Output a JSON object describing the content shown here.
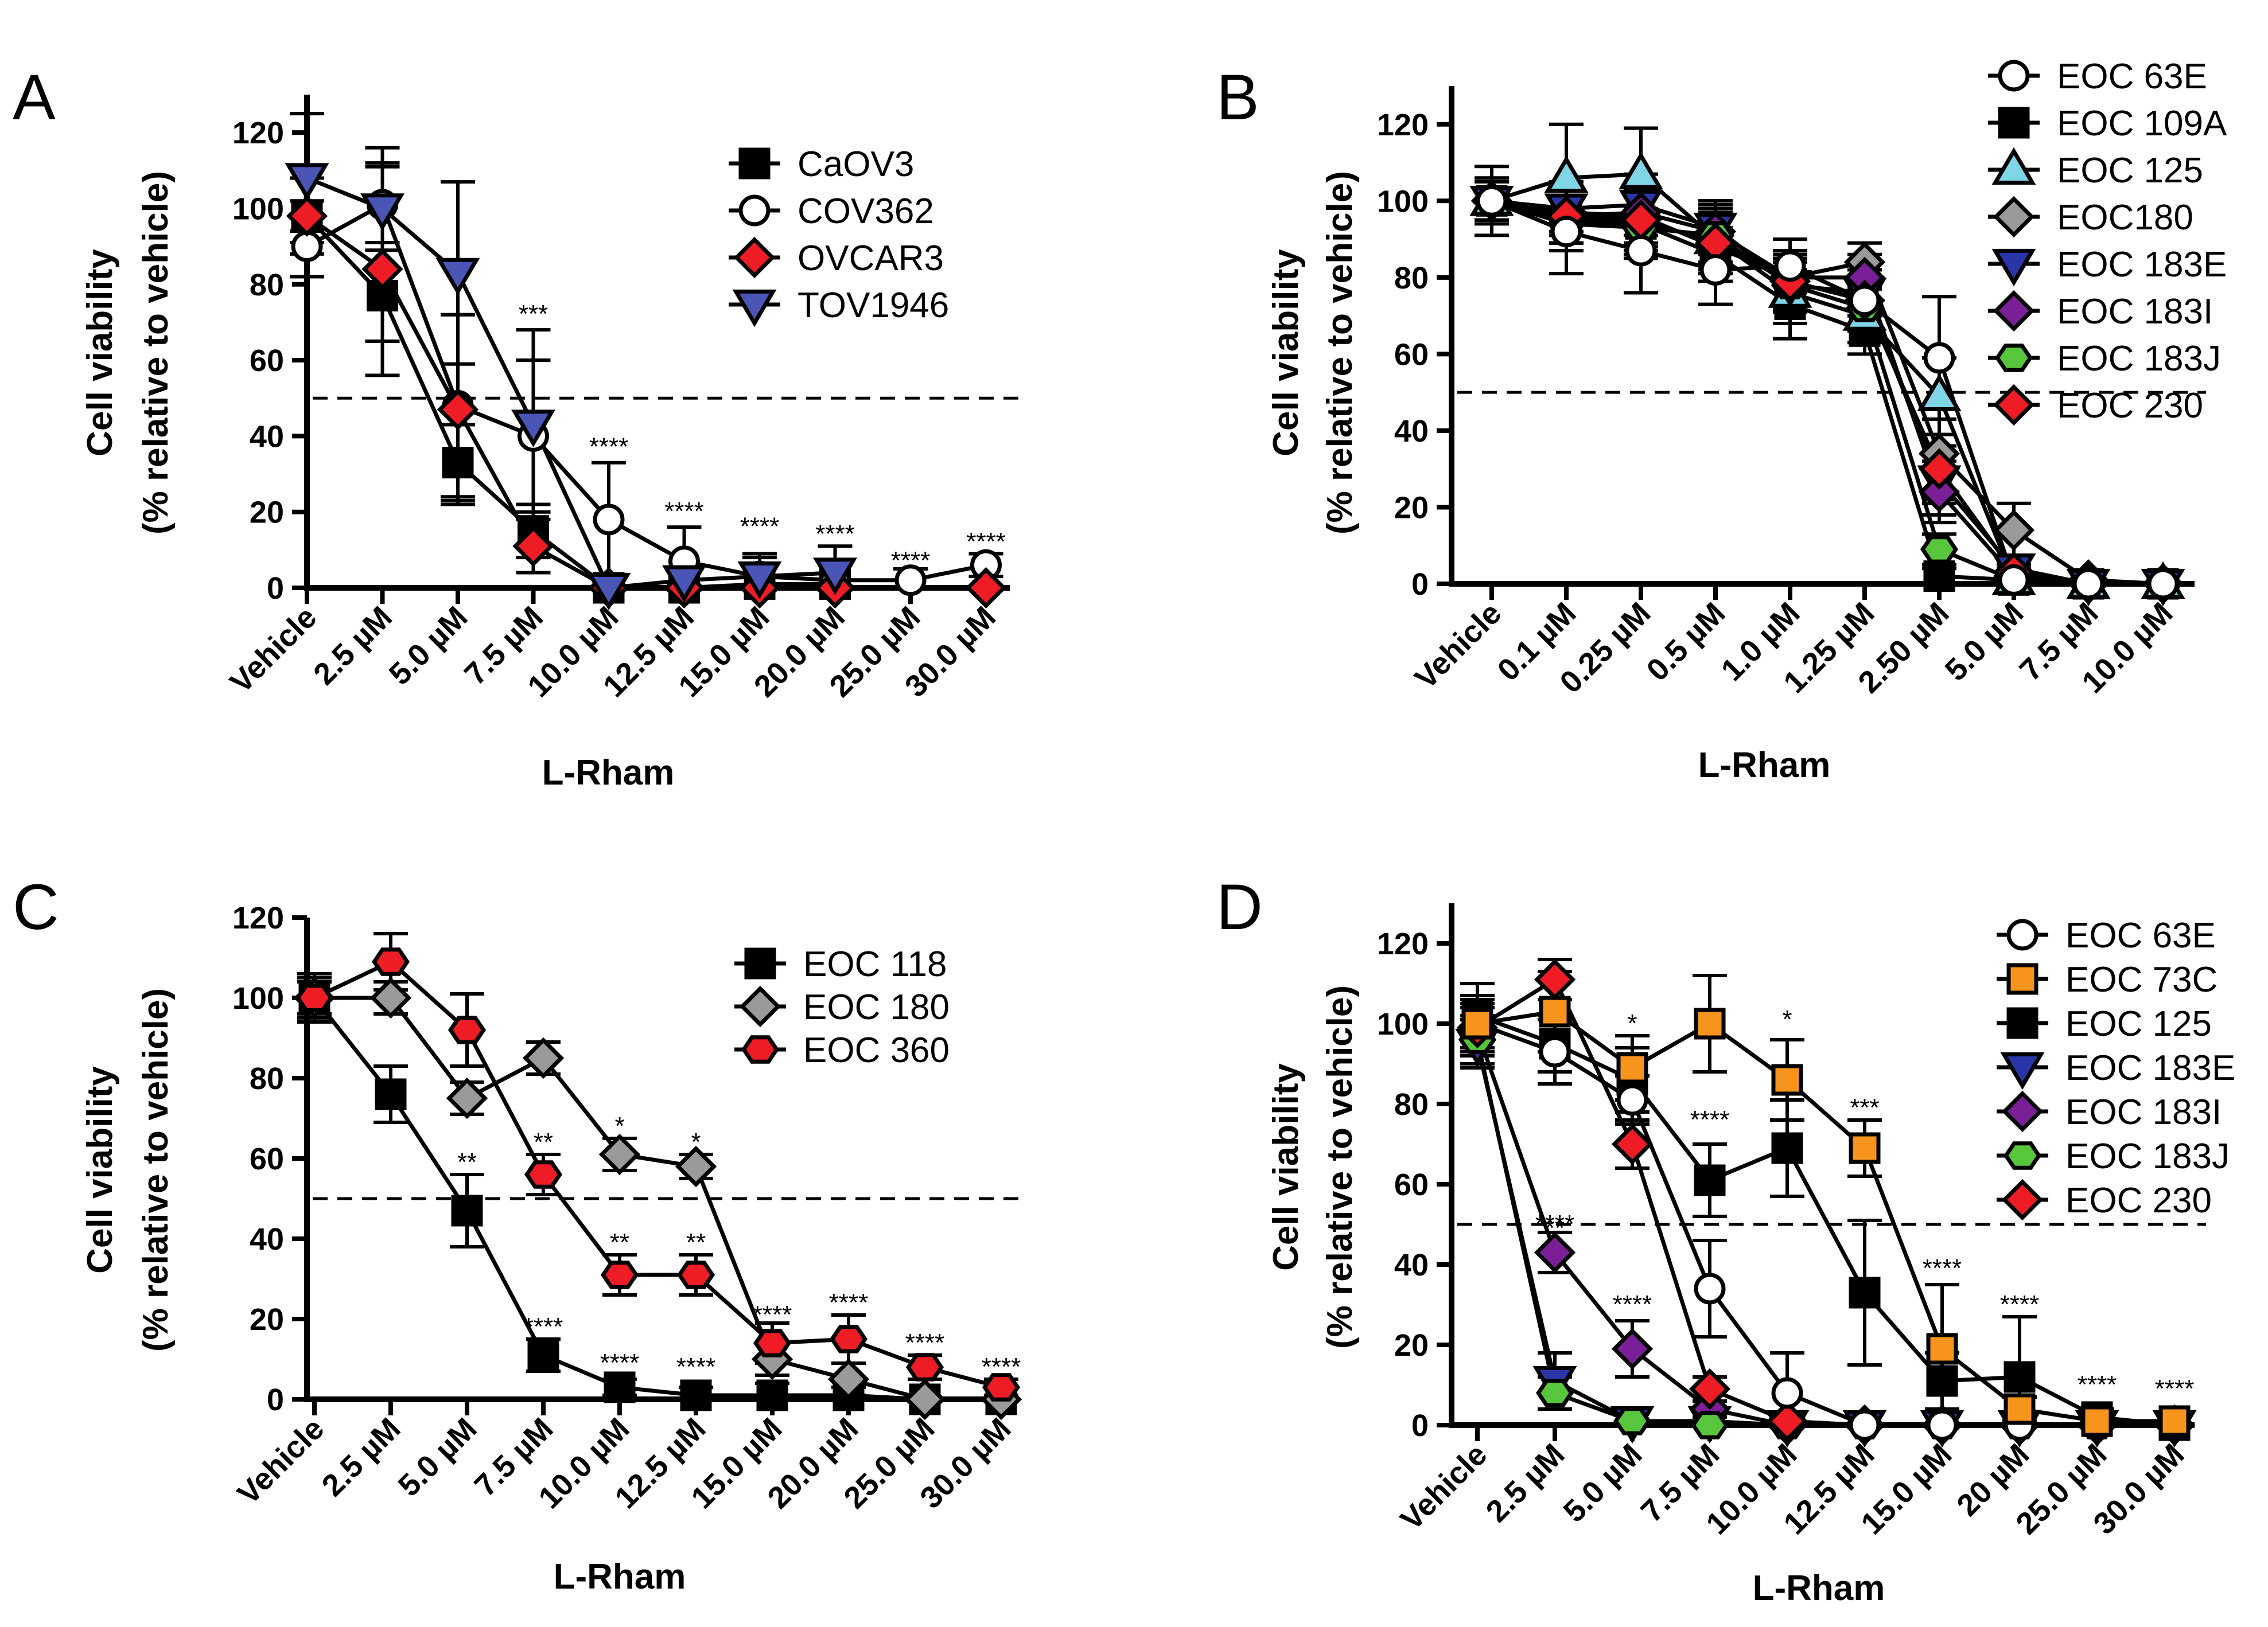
{
  "chart_data": [
    {
      "panel": "A",
      "type": "line",
      "xlabel": "L-Rham",
      "ylabel": "Cell viability",
      "ylabel2": "(% relative to vehicle)",
      "ylim": [
        0,
        130
      ],
      "yticks": [
        0,
        20,
        40,
        60,
        80,
        100,
        120
      ],
      "reference_line": 50,
      "legend_position": "top-right",
      "categories": [
        "Vehicle",
        "2.5 µM",
        "5.0 µM",
        "7.5 µM",
        "10.0 µM",
        "12.5 µM",
        "15.0 µM",
        "20.0 µM",
        "25.0 µM",
        "30.0 µM"
      ],
      "series": [
        {
          "name": "CaOV3",
          "marker": "square",
          "fill": "#000000",
          "values": [
            98,
            77,
            33,
            15,
            0,
            0,
            1,
            1,
            null,
            null
          ],
          "errors": [
            4,
            12,
            10,
            7,
            1,
            1,
            1,
            1,
            null,
            null
          ]
        },
        {
          "name": "COV362",
          "marker": "circle",
          "fill": "#ffffff",
          "values": [
            90,
            101,
            48,
            40,
            18,
            7,
            3,
            2,
            2,
            6
          ],
          "errors": [
            8,
            10,
            24,
            20,
            15,
            9,
            6,
            4,
            3,
            3
          ]
        },
        {
          "name": "OVCAR3",
          "marker": "diamond",
          "fill": "#ee1c25",
          "values": [
            98,
            84,
            47,
            11,
            0,
            0,
            0,
            0,
            null,
            0
          ],
          "errors": [
            10,
            28,
            25,
            7,
            1,
            1,
            1,
            1,
            null,
            1
          ]
        },
        {
          "name": "TOV1946",
          "marker": "triangle-down",
          "fill": "#4a55b6",
          "values": [
            108,
            100,
            83,
            43,
            0,
            2,
            3,
            4,
            null,
            null
          ],
          "errors": [
            17,
            16,
            24,
            25,
            1,
            1,
            5,
            7,
            null,
            null
          ]
        }
      ],
      "annotations": [
        {
          "category": "7.5 µM",
          "text": "***",
          "at": 70
        },
        {
          "category": "10.0 µM",
          "text": "****",
          "at": 35
        },
        {
          "category": "12.5 µM",
          "text": "****",
          "at": 18
        },
        {
          "category": "15.0 µM",
          "text": "****",
          "at": 14
        },
        {
          "category": "20.0 µM",
          "text": "****",
          "at": 12
        },
        {
          "category": "25.0 µM",
          "text": "****",
          "at": 5
        },
        {
          "category": "30.0 µM",
          "text": "****",
          "at": 10
        }
      ]
    },
    {
      "panel": "B",
      "type": "line",
      "xlabel": "L-Rham",
      "ylabel": "Cell viability",
      "ylabel2": "(% relative to vehicle)",
      "ylim": [
        0,
        130
      ],
      "yticks": [
        0,
        20,
        40,
        60,
        80,
        100,
        120
      ],
      "reference_line": 50,
      "legend_position": "top-right",
      "categories": [
        "Vehicle",
        "0.1 µM",
        "0.25 µM",
        "0.5 µM",
        "1.0 µM",
        "1.25 µM",
        "2.50 µM",
        "5.0 µM",
        "7.5 µM",
        "10.0 µM"
      ],
      "series": [
        {
          "name": "EOC 109A",
          "marker": "square",
          "fill": "#000000",
          "values": [
            100,
            95,
            94,
            86,
            73,
            66,
            2,
            1,
            0,
            0
          ],
          "errors": [
            5,
            6,
            8,
            7,
            9,
            6,
            2,
            1,
            1,
            1
          ]
        },
        {
          "name": "EOC 125",
          "marker": "triangle-up",
          "fill": "#7fd4e6",
          "values": [
            100,
            106,
            107,
            90,
            76,
            70,
            49,
            1,
            0,
            0
          ],
          "errors": [
            5,
            14,
            12,
            8,
            8,
            7,
            10,
            1,
            1,
            1
          ]
        },
        {
          "name": "EOC180",
          "marker": "diamond",
          "fill": "#9a9a9a",
          "values": [
            100,
            97,
            96,
            88,
            80,
            84,
            34,
            14,
            1,
            0
          ],
          "errors": [
            6,
            8,
            8,
            9,
            6,
            5,
            12,
            7,
            1,
            1
          ]
        },
        {
          "name": "EOC 183E",
          "marker": "triangle-down",
          "fill": "#2a35a8",
          "values": [
            100,
            98,
            99,
            93,
            78,
            76,
            27,
            4,
            0,
            0
          ],
          "errors": [
            5,
            7,
            8,
            7,
            7,
            6,
            9,
            3,
            1,
            1
          ]
        },
        {
          "name": "EOC 183I",
          "marker": "diamond",
          "fill": "#7a1f95",
          "values": [
            100,
            96,
            97,
            92,
            80,
            80,
            24,
            2,
            0,
            0
          ],
          "errors": [
            5,
            7,
            8,
            8,
            7,
            6,
            8,
            2,
            1,
            1
          ]
        },
        {
          "name": "EOC 183J",
          "marker": "hexagon",
          "fill": "#58c63c",
          "values": [
            100,
            94,
            93,
            91,
            78,
            72,
            9,
            1,
            0,
            0
          ],
          "errors": [
            5,
            7,
            8,
            8,
            7,
            6,
            4,
            1,
            1,
            1
          ]
        },
        {
          "name": "EOC 230",
          "marker": "diamond",
          "fill": "#ee1c25",
          "values": [
            100,
            96,
            95,
            89,
            79,
            74,
            30,
            3,
            0,
            0
          ],
          "errors": [
            5,
            7,
            8,
            8,
            7,
            6,
            9,
            2,
            1,
            1
          ]
        },
        {
          "name": "EOC 63E",
          "marker": "circle",
          "fill": "#ffffff",
          "values": [
            100,
            92,
            87,
            82,
            83,
            74,
            59,
            1,
            0,
            0
          ],
          "errors": [
            9,
            11,
            11,
            9,
            7,
            6,
            16,
            1,
            1,
            1
          ]
        }
      ],
      "annotations": []
    },
    {
      "panel": "C",
      "type": "line",
      "xlabel": "L-Rham",
      "ylabel": "Cell viability",
      "ylabel2": "(% relative to vehicle)",
      "ylim": [
        0,
        120
      ],
      "yticks": [
        0,
        20,
        40,
        60,
        80,
        100,
        120
      ],
      "reference_line": 50,
      "legend_position": "top-right",
      "categories": [
        "Vehicle",
        "2.5 µM",
        "5.0 µM",
        "7.5 µM",
        "10.0 µM",
        "12.5 µM",
        "15.0 µM",
        "20.0 µM",
        "25.0 µM",
        "30.0 µM"
      ],
      "series": [
        {
          "name": "EOC 118",
          "marker": "square",
          "fill": "#000000",
          "values": [
            100,
            76,
            47,
            11,
            3,
            1,
            1,
            1,
            0,
            0
          ],
          "errors": [
            6,
            7,
            9,
            4,
            2,
            2,
            3,
            2,
            1,
            1
          ]
        },
        {
          "name": "EOC 180",
          "marker": "diamond",
          "fill": "#9a9a9a",
          "values": [
            100,
            100,
            75,
            85,
            61,
            58,
            10,
            5,
            0,
            0
          ],
          "errors": [
            5,
            4,
            4,
            4,
            4,
            3,
            4,
            4,
            1,
            1
          ]
        },
        {
          "name": "EOC 360",
          "marker": "hexagon",
          "fill": "#ee1c25",
          "values": [
            100,
            109,
            92,
            56,
            31,
            31,
            14,
            15,
            8,
            3
          ],
          "errors": [
            4,
            7,
            9,
            5,
            5,
            5,
            5,
            6,
            3,
            2
          ]
        }
      ],
      "annotations": [
        {
          "category": "5.0 µM",
          "text": "**",
          "at": 57
        },
        {
          "category": "7.5 µM",
          "text": "**",
          "at": 62
        },
        {
          "category": "7.5 µM",
          "text": "****",
          "at": 16
        },
        {
          "category": "10.0 µM",
          "text": "*",
          "at": 66
        },
        {
          "category": "10.0 µM",
          "text": "**",
          "at": 37
        },
        {
          "category": "10.0 µM",
          "text": "****",
          "at": 7
        },
        {
          "category": "12.5 µM",
          "text": "*",
          "at": 62
        },
        {
          "category": "12.5 µM",
          "text": "**",
          "at": 37
        },
        {
          "category": "12.5 µM",
          "text": "****",
          "at": 6
        },
        {
          "category": "15.0 µM",
          "text": "****",
          "at": 19
        },
        {
          "category": "20.0 µM",
          "text": "****",
          "at": 22
        },
        {
          "category": "25.0 µM",
          "text": "****",
          "at": 12
        },
        {
          "category": "30.0 µM",
          "text": "****",
          "at": 6
        }
      ]
    },
    {
      "panel": "D",
      "type": "line",
      "xlabel": "L-Rham",
      "ylabel": "Cell viability",
      "ylabel2": "(% relative to vehicle)",
      "ylim": [
        0,
        130
      ],
      "yticks": [
        0,
        20,
        40,
        60,
        80,
        100,
        120
      ],
      "reference_line": 50,
      "legend_position": "top-right",
      "categories": [
        "Vehicle",
        "2.5 µM",
        "5.0 µM",
        "7.5 µM",
        "10.0 µM",
        "12.5 µM",
        "15.0 µM",
        "20 µM",
        "25.0 µM",
        "30.0 µM"
      ],
      "series": [
        {
          "name": "EOC 125",
          "marker": "square",
          "fill": "#000000",
          "values": [
            102,
            95,
            86,
            61,
            69,
            33,
            11,
            12,
            2,
            0
          ],
          "errors": [
            8,
            7,
            8,
            9,
            12,
            18,
            7,
            15,
            2,
            1
          ]
        },
        {
          "name": "EOC 183E",
          "marker": "triangle-down",
          "fill": "#2a35a8",
          "values": [
            95,
            11,
            1,
            1,
            0,
            0,
            0,
            0,
            0,
            0
          ],
          "errors": [
            6,
            7,
            1,
            1,
            1,
            1,
            1,
            1,
            1,
            1
          ]
        },
        {
          "name": "EOC 183I",
          "marker": "diamond",
          "fill": "#7a1f95",
          "values": [
            98,
            43,
            19,
            4,
            0,
            0,
            0,
            0,
            0,
            0
          ],
          "errors": [
            6,
            5,
            7,
            2,
            1,
            1,
            1,
            1,
            1,
            1
          ]
        },
        {
          "name": "EOC 183J",
          "marker": "hexagon",
          "fill": "#58c63c",
          "values": [
            96,
            8,
            1,
            0,
            0,
            0,
            0,
            0,
            0,
            0
          ],
          "errors": [
            6,
            4,
            1,
            1,
            1,
            1,
            1,
            1,
            1,
            1
          ]
        },
        {
          "name": "EOC 230",
          "marker": "diamond",
          "fill": "#ee1c25",
          "values": [
            99,
            111,
            70,
            9,
            1,
            0,
            0,
            0,
            0,
            0
          ],
          "errors": [
            6,
            5,
            6,
            3,
            1,
            1,
            1,
            1,
            1,
            1
          ]
        },
        {
          "name": "EOC 63E",
          "marker": "circle",
          "fill": "#ffffff",
          "values": [
            100,
            93,
            81,
            34,
            8,
            0,
            0,
            0,
            0,
            0
          ],
          "errors": [
            6,
            8,
            6,
            12,
            10,
            1,
            1,
            1,
            1,
            1
          ]
        },
        {
          "name": "EOC 73C",
          "marker": "square",
          "fill": "#f7941d",
          "values": [
            100,
            103,
            89,
            100,
            86,
            69,
            19,
            4,
            1,
            1
          ],
          "errors": [
            7,
            10,
            8,
            12,
            10,
            7,
            16,
            3,
            1,
            1
          ]
        }
      ],
      "annotations": [
        {
          "category": "2.5 µM",
          "text": "****",
          "at": 48
        },
        {
          "category": "2.5 µM",
          "text": "**",
          "at": 47
        },
        {
          "category": "5.0 µM",
          "text": "*",
          "at": 98
        },
        {
          "category": "5.0 µM",
          "text": "****",
          "at": 28
        },
        {
          "category": "7.5 µM",
          "text": "****",
          "at": 74
        },
        {
          "category": "10.0 µM",
          "text": "*",
          "at": 99
        },
        {
          "category": "12.5 µM",
          "text": "***",
          "at": 77
        },
        {
          "category": "15.0 µM",
          "text": "****",
          "at": 37
        },
        {
          "category": "20 µM",
          "text": "****",
          "at": 28
        },
        {
          "category": "25.0 µM",
          "text": "****",
          "at": 8
        },
        {
          "category": "30.0 µM",
          "text": "****",
          "at": 7
        }
      ]
    }
  ]
}
